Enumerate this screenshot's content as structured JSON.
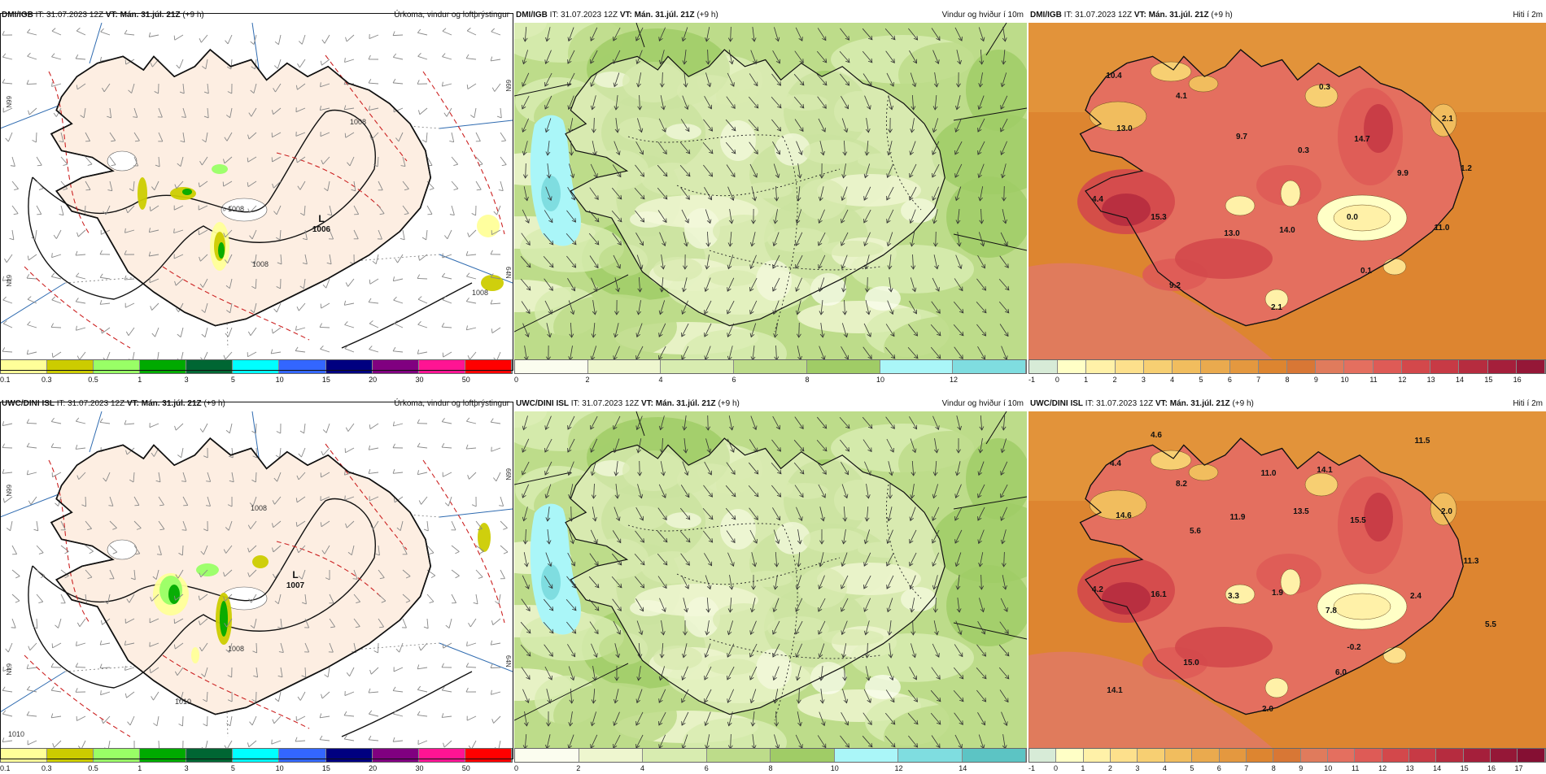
{
  "panels": [
    {
      "id": "p1",
      "model": "DMI/IGB",
      "it": "31.07.2023 12Z",
      "vt_label": "VT:",
      "vt": "Mán. 31.júl. 21Z",
      "lead": "(+9 h)",
      "product": "Úrkoma, vindur og loftþrýstingur",
      "kind": "precip",
      "pressure_labels": [
        {
          "text": "L"
        },
        {
          "text": "1006"
        },
        {
          "text": "1008"
        },
        {
          "text": "1008"
        },
        {
          "text": "1008"
        },
        {
          "text": "1008"
        }
      ],
      "lat_labels": [
        "66N",
        "64N",
        "66N",
        "64N"
      ],
      "scale": [
        "0.1",
        "0.3",
        "0.5",
        "1",
        "3",
        "5",
        "10",
        "15",
        "20",
        "30",
        "50"
      ]
    },
    {
      "id": "p2",
      "model": "DMI/IGB",
      "it": "31.07.2023 12Z",
      "vt_label": "VT:",
      "vt": "Mán. 31.júl. 21Z",
      "lead": "(+9 h)",
      "product": "Vindur og hviður í 10m",
      "kind": "wind",
      "scale": [
        "0",
        "2",
        "4",
        "6",
        "8",
        "10",
        "12"
      ]
    },
    {
      "id": "p3",
      "model": "DMI/IGB",
      "it": "31.07.2023 12Z",
      "vt_label": "VT:",
      "vt": "Mán. 31.júl. 21Z",
      "lead": "(+9 h)",
      "product": "Hiti í 2m",
      "kind": "temp",
      "temps": [
        {
          "v": "10.4"
        },
        {
          "v": "4.1"
        },
        {
          "v": "13.0"
        },
        {
          "v": "9.7"
        },
        {
          "v": "0.3"
        },
        {
          "v": "0.3"
        },
        {
          "v": "14.7"
        },
        {
          "v": "2.1"
        },
        {
          "v": "9.9"
        },
        {
          "v": "1.2"
        },
        {
          "v": "4.4"
        },
        {
          "v": "15.3"
        },
        {
          "v": "13.0"
        },
        {
          "v": "14.0"
        },
        {
          "v": "0.0"
        },
        {
          "v": "11.0"
        },
        {
          "v": "0.1"
        },
        {
          "v": "9.2"
        },
        {
          "v": "2.1"
        }
      ],
      "scale": [
        "-1",
        "0",
        "1",
        "2",
        "3",
        "4",
        "5",
        "6",
        "7",
        "8",
        "9",
        "10",
        "11",
        "12",
        "13",
        "14",
        "15",
        "16"
      ]
    },
    {
      "id": "p4",
      "model": "UWC/DINI ISL",
      "it": "31.07.2023 12Z",
      "vt_label": "VT:",
      "vt": "Mán. 31.júl. 21Z",
      "lead": "(+9 h)",
      "product": "Úrkoma, vindur og loftþrýstingur",
      "kind": "precip",
      "pressure_labels": [
        {
          "text": "L"
        },
        {
          "text": "1007"
        },
        {
          "text": "1008"
        },
        {
          "text": "1008"
        },
        {
          "text": "1010"
        },
        {
          "text": "1010"
        }
      ],
      "lat_labels": [
        "66N",
        "64N",
        "66N",
        "64N"
      ],
      "scale": [
        "0.1",
        "0.3",
        "0.5",
        "1",
        "3",
        "5",
        "10",
        "15",
        "20",
        "30",
        "50"
      ]
    },
    {
      "id": "p5",
      "model": "UWC/DINI ISL",
      "it": "31.07.2023 12Z",
      "vt_label": "VT:",
      "vt": "Mán. 31.júl. 21Z",
      "lead": "(+9 h)",
      "product": "Vindur og hviður í 10m",
      "kind": "wind",
      "scale": [
        "0",
        "2",
        "4",
        "6",
        "8",
        "10",
        "12",
        "14"
      ]
    },
    {
      "id": "p6",
      "model": "UWC/DINI ISL",
      "it": "31.07.2023 12Z",
      "vt_label": "VT:",
      "vt": "Mán. 31.júl. 21Z",
      "lead": "(+9 h)",
      "product": "Hiti í 2m",
      "kind": "temp",
      "temps": [
        {
          "v": "4.6"
        },
        {
          "v": "4.4"
        },
        {
          "v": "8.2"
        },
        {
          "v": "11.0"
        },
        {
          "v": "14.1"
        },
        {
          "v": "11.5"
        },
        {
          "v": "14.6"
        },
        {
          "v": "5.6"
        },
        {
          "v": "11.9"
        },
        {
          "v": "13.5"
        },
        {
          "v": "15.5"
        },
        {
          "v": "2.0"
        },
        {
          "v": "11.3"
        },
        {
          "v": "4.2"
        },
        {
          "v": "16.1"
        },
        {
          "v": "3.3"
        },
        {
          "v": "1.9"
        },
        {
          "v": "7.8"
        },
        {
          "v": "2.4"
        },
        {
          "v": "-0.2"
        },
        {
          "v": "5.5"
        },
        {
          "v": "15.0"
        },
        {
          "v": "6.0"
        },
        {
          "v": "14.1"
        },
        {
          "v": "2.0"
        }
      ],
      "scale": [
        "-1",
        "0",
        "1",
        "2",
        "3",
        "4",
        "5",
        "6",
        "7",
        "8",
        "9",
        "10",
        "11",
        "12",
        "13",
        "14",
        "15",
        "16",
        "17"
      ]
    }
  ],
  "colors": {
    "precip": [
      "#ffff99",
      "#cccc00",
      "#99ff66",
      "#00aa00",
      "#006633",
      "#00ffff",
      "#3366ff",
      "#000080",
      "#800080",
      "#ff1493",
      "#ff0000"
    ],
    "wind": [
      "#fbfdef",
      "#eef6cf",
      "#d8ecb0",
      "#bddc8a",
      "#a0cc66",
      "#aaf6f8",
      "#7fdde0",
      "#5cc4c4"
    ],
    "temp": [
      "#d7ebd7",
      "#ffffc6",
      "#fff1a8",
      "#fde08c",
      "#f7cf72",
      "#f1bd5e",
      "#eaaa4e",
      "#e4983f",
      "#dd8530",
      "#d87735",
      "#e07b5c",
      "#e46f5f",
      "#de5b56",
      "#d3484b",
      "#c73a45",
      "#b62c3f",
      "#a51f3b",
      "#951737",
      "#850f33"
    ]
  }
}
